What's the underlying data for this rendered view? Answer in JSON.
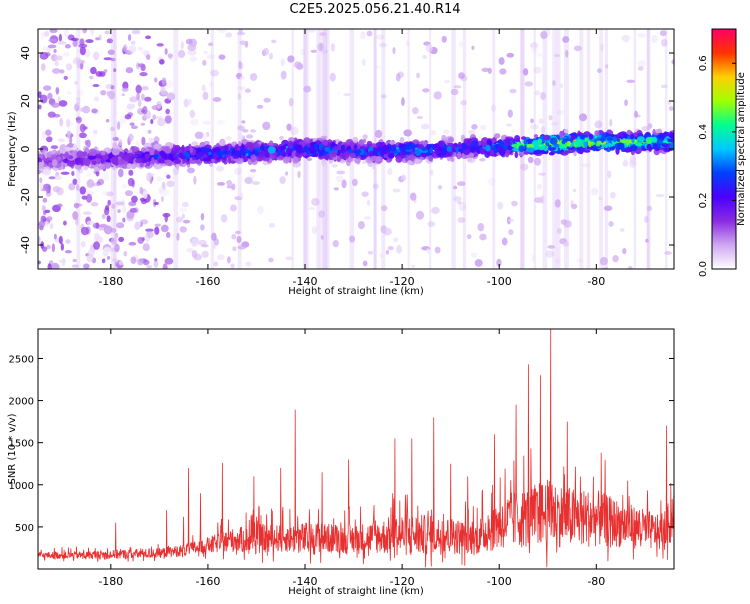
{
  "title": "C2E5.2025.056.21.40.R14",
  "colors": {
    "snr_line": "#e83030",
    "axis": "#000000",
    "colormap": [
      "#ffffff",
      "#cfa8f2",
      "#8a2be2",
      "#4b00ff",
      "#0040ff",
      "#00c8ff",
      "#00ff90",
      "#a0ff00",
      "#ffd000",
      "#ff3300",
      "#ff0066"
    ]
  },
  "chart_data": [
    {
      "type": "heatmap",
      "name": "spectrogram",
      "title": "",
      "xlabel": "Height of straight line (km)",
      "ylabel": "Frequency (Hz)",
      "xlim": [
        -195,
        -64
      ],
      "ylim": [
        -50,
        50
      ],
      "xticks": [
        -180,
        -160,
        -140,
        -120,
        -100,
        -80
      ],
      "yticks": [
        -40,
        -20,
        0,
        20,
        40
      ],
      "colorbar": {
        "label": "Normalized spectral amplitude",
        "range": [
          0.0,
          0.7
        ],
        "ticks": [
          0.0,
          0.2,
          0.4,
          0.6
        ],
        "tick_labels": [
          "0.0",
          "0.2",
          "0.4",
          "0.6"
        ]
      },
      "signal_band": {
        "center_hz": [
          [
            -195,
            -5
          ],
          [
            -185,
            -4
          ],
          [
            -170,
            -3
          ],
          [
            -160,
            -2
          ],
          [
            -150,
            -1
          ],
          [
            -140,
            0
          ],
          [
            -130,
            -1
          ],
          [
            -120,
            -1
          ],
          [
            -110,
            0
          ],
          [
            -100,
            1
          ],
          [
            -90,
            2
          ],
          [
            -80,
            3
          ],
          [
            -70,
            3
          ],
          [
            -64,
            3
          ]
        ],
        "half_width_hz": 6,
        "peak_amplitude": [
          [
            -195,
            0.15
          ],
          [
            -180,
            0.2
          ],
          [
            -165,
            0.3
          ],
          [
            -150,
            0.3
          ],
          [
            -140,
            0.33
          ],
          [
            -130,
            0.3
          ],
          [
            -120,
            0.35
          ],
          [
            -110,
            0.3
          ],
          [
            -100,
            0.35
          ],
          [
            -90,
            0.55
          ],
          [
            -80,
            0.5
          ],
          [
            -70,
            0.45
          ],
          [
            -64,
            0.4
          ]
        ]
      }
    },
    {
      "type": "line",
      "name": "snr",
      "title": "",
      "xlabel": "Height of straight line (km)",
      "ylabel": "SNR (10 * v/v)",
      "xlim": [
        -195,
        -64
      ],
      "ylim": [
        0,
        2850
      ],
      "xticks": [
        -180,
        -160,
        -140,
        -120,
        -100,
        -80
      ],
      "yticks": [
        500,
        1000,
        1500,
        2000,
        2500
      ],
      "envelope": {
        "x": [
          -195,
          -185,
          -175,
          -170,
          -165,
          -160,
          -155,
          -150,
          -145,
          -140,
          -135,
          -130,
          -125,
          -120,
          -115,
          -110,
          -105,
          -100,
          -95,
          -90,
          -85,
          -80,
          -75,
          -70,
          -66,
          -64
        ],
        "baseline": [
          150,
          150,
          160,
          170,
          200,
          250,
          300,
          300,
          320,
          300,
          310,
          300,
          320,
          330,
          330,
          330,
          300,
          450,
          500,
          550,
          500,
          500,
          450,
          400,
          350,
          600
        ],
        "spread": [
          100,
          120,
          150,
          150,
          180,
          250,
          350,
          450,
          400,
          500,
          450,
          450,
          500,
          650,
          600,
          550,
          500,
          800,
          900,
          1000,
          900,
          850,
          700,
          600,
          500,
          900
        ]
      },
      "peaks": [
        {
          "x": -89.4,
          "y": 2850
        },
        {
          "x": -94.0,
          "y": 2430
        },
        {
          "x": -91.5,
          "y": 2300
        },
        {
          "x": -96.5,
          "y": 1950
        },
        {
          "x": -142.0,
          "y": 1890
        },
        {
          "x": -113.5,
          "y": 1800
        },
        {
          "x": -101.0,
          "y": 1600
        },
        {
          "x": -121.5,
          "y": 1550
        },
        {
          "x": -65.5,
          "y": 1700
        },
        {
          "x": -118.0,
          "y": 1550
        },
        {
          "x": -86.0,
          "y": 1750
        },
        {
          "x": -131.0,
          "y": 1300
        },
        {
          "x": -157.0,
          "y": 1260
        },
        {
          "x": -150.5,
          "y": 1100
        },
        {
          "x": -145.0,
          "y": 1200
        },
        {
          "x": -79.0,
          "y": 1380
        },
        {
          "x": -136.5,
          "y": 1150
        },
        {
          "x": -110.0,
          "y": 1250
        },
        {
          "x": -106.5,
          "y": 1100
        },
        {
          "x": -73.5,
          "y": 1050
        },
        {
          "x": -168.5,
          "y": 700
        },
        {
          "x": -165.0,
          "y": 620
        },
        {
          "x": -179.0,
          "y": 550
        },
        {
          "x": -164.0,
          "y": 1200
        },
        {
          "x": -161.5,
          "y": 900
        }
      ]
    }
  ]
}
